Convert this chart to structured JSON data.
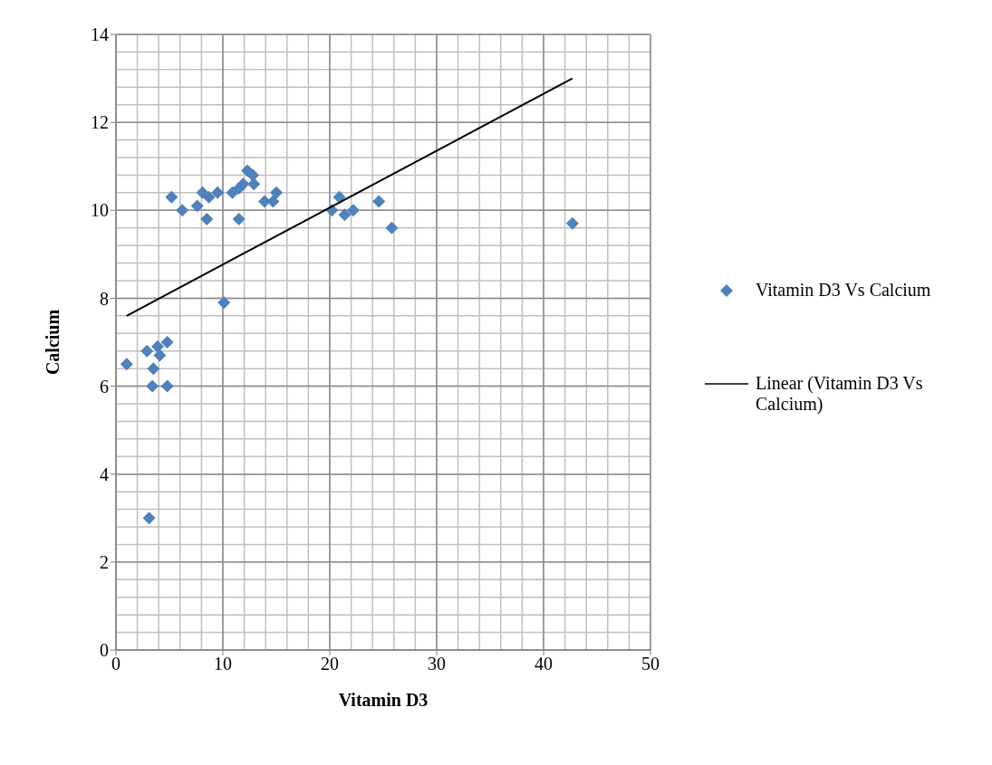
{
  "chart_data": {
    "type": "scatter",
    "xlabel": "Vitamin D3",
    "ylabel": "Calcium",
    "xlim": [
      0,
      50
    ],
    "xticks": [
      0,
      10,
      20,
      30,
      40,
      50
    ],
    "ylim": [
      0,
      14
    ],
    "yticks": [
      0,
      2,
      4,
      6,
      8,
      10,
      12,
      14
    ],
    "grid": true,
    "legend": "right",
    "marker": "diamond",
    "series": [
      {
        "name": "Vitamin D3 Vs Calcium",
        "color": "#4f81bd",
        "x": [
          1,
          2.9,
          3.5,
          3.4,
          4.8,
          4.1,
          4.8,
          3.9,
          3.1,
          10.1,
          5.2,
          6.2,
          7.6,
          8.1,
          8.5,
          8.7,
          9.5,
          10.9,
          11.5,
          11.5,
          11.9,
          12.3,
          12.8,
          12.9,
          13.9,
          14.7,
          15.0,
          20.2,
          20.9,
          21.4,
          22.2,
          24.6,
          25.8,
          42.7
        ],
        "values": [
          6.5,
          6.8,
          6.4,
          6.0,
          6.0,
          6.7,
          7.0,
          6.9,
          3.0,
          7.9,
          10.3,
          10.0,
          10.1,
          10.4,
          9.8,
          10.3,
          10.4,
          10.4,
          9.8,
          10.5,
          10.6,
          10.9,
          10.8,
          10.6,
          10.2,
          10.2,
          10.4,
          10.0,
          10.3,
          9.9,
          10.0,
          10.2,
          9.6,
          9.7
        ]
      },
      {
        "name": "Linear (Vitamin D3 Vs Calcium)",
        "type": "line",
        "color": "#000000",
        "line_style": "solid",
        "marker": "none",
        "x": [
          1,
          42.7
        ],
        "values": [
          7.6,
          13.0
        ]
      }
    ]
  }
}
